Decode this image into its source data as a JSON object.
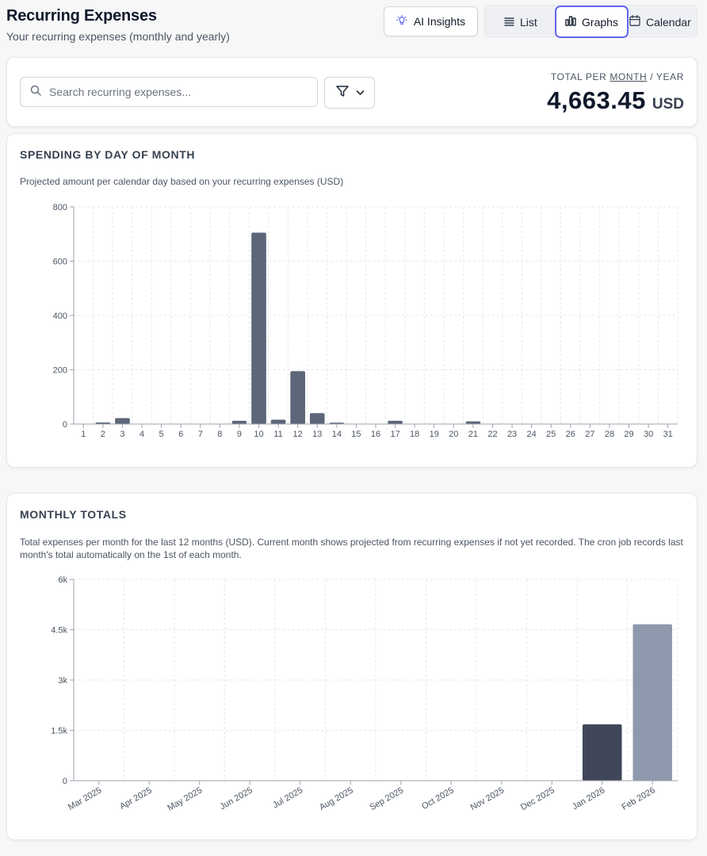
{
  "header": {
    "title": "Recurring Expenses",
    "subtitle": "Your recurring expenses (monthly and yearly)",
    "ai_button": "AI Insights",
    "views": [
      {
        "label": "List",
        "icon": "list-icon"
      },
      {
        "label": "Graphs",
        "icon": "bar-chart-icon",
        "active": true
      },
      {
        "label": "Calendar",
        "icon": "calendar-icon"
      }
    ]
  },
  "search": {
    "placeholder": "Search recurring expenses...",
    "value": ""
  },
  "total": {
    "label_prefix": "TOTAL PER ",
    "label_month": "MONTH",
    "label_sep": " / ",
    "label_year": "YEAR",
    "amount": "4,663.45",
    "currency": "USD"
  },
  "day_card": {
    "heading": "SPENDING BY DAY OF MONTH",
    "description": "Projected amount per calendar day based on your recurring expenses (USD)"
  },
  "month_card": {
    "heading": "MONTHLY TOTALS",
    "description": "Total expenses per month for the last 12 months (USD). Current month shows projected from recurring expenses if not yet recorded. The cron job records last month's total automatically on the 1st of each month."
  },
  "colors": {
    "accent": "#6366f1",
    "bar_day": "#5d6679",
    "bar_month": "#3f4759",
    "bar_month_projected": "#8f99ad"
  },
  "chart_data": [
    {
      "type": "bar",
      "categories": [
        "1",
        "2",
        "3",
        "4",
        "5",
        "6",
        "7",
        "8",
        "9",
        "10",
        "11",
        "12",
        "13",
        "14",
        "15",
        "16",
        "17",
        "18",
        "19",
        "20",
        "21",
        "22",
        "23",
        "24",
        "25",
        "26",
        "27",
        "28",
        "29",
        "30",
        "31"
      ],
      "values": [
        0,
        6,
        22,
        0,
        0,
        0,
        0,
        0,
        12,
        705,
        16,
        195,
        40,
        5,
        0,
        0,
        12,
        0,
        0,
        0,
        10,
        0,
        0,
        0,
        0,
        0,
        0,
        0,
        0,
        0,
        0
      ],
      "yticks": [
        "0",
        "200",
        "400",
        "600",
        "800"
      ],
      "ylim": [
        0,
        800
      ],
      "grid": true
    },
    {
      "type": "bar",
      "categories": [
        "Mar 2025",
        "Apr 2025",
        "May 2025",
        "Jun 2025",
        "Jul 2025",
        "Aug 2025",
        "Sep 2025",
        "Oct 2025",
        "Nov 2025",
        "Dec 2025",
        "Jan 2026",
        "Feb 2026"
      ],
      "values": [
        0,
        0,
        0,
        0,
        0,
        0,
        0,
        0,
        0,
        0,
        1680,
        4663.45
      ],
      "projected": [
        false,
        false,
        false,
        false,
        false,
        false,
        false,
        false,
        false,
        false,
        false,
        true
      ],
      "yticks": [
        "0",
        "1.5k",
        "3k",
        "4.5k",
        "6k"
      ],
      "ylim": [
        0,
        6000
      ],
      "grid": true
    }
  ]
}
